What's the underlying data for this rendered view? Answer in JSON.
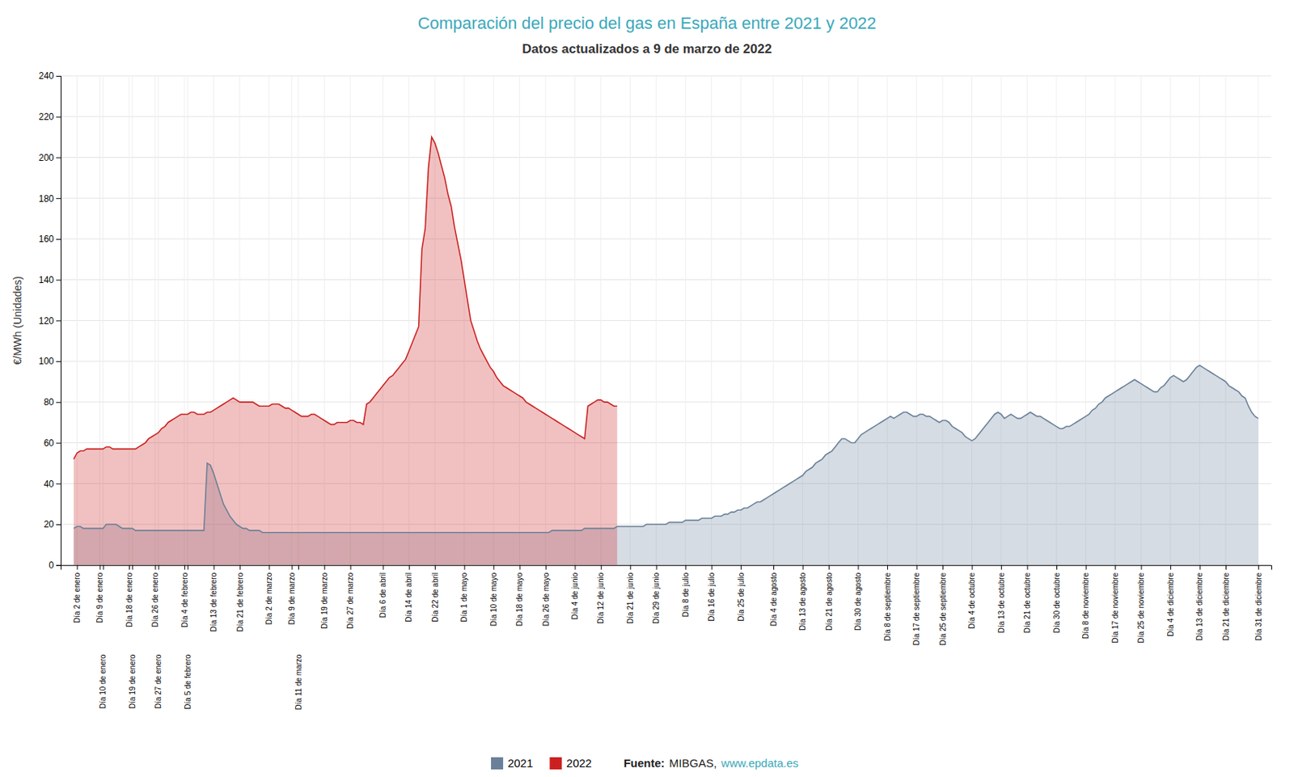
{
  "chart_data": {
    "type": "area",
    "title": "Comparación del precio del gas en España entre 2021 y 2022",
    "subtitle": "Datos actualizados a 9 de marzo de 2022",
    "y_label": "€/MWh (Unidades)",
    "annotations": [
      "Fuente:",
      "MIBGAS,",
      "www.epdata.es"
    ],
    "grid": true,
    "legend": "bottom",
    "ylim": [
      0,
      240
    ],
    "yticks": [
      0,
      20,
      40,
      60,
      80,
      100,
      120,
      140,
      160,
      180,
      200,
      220,
      240
    ],
    "categories": [
      null,
      "Día 2 de enero",
      null,
      null,
      null,
      null,
      null,
      null,
      "Día 9 de enero",
      "Día 10 de enero",
      null,
      null,
      null,
      null,
      null,
      null,
      null,
      "Día 18 de enero",
      "Día 19 de enero",
      null,
      null,
      null,
      null,
      null,
      null,
      "Día 26 de enero",
      "Día 27 de enero",
      null,
      null,
      null,
      null,
      null,
      null,
      null,
      "Día 4 de febrero",
      "Día 5 de febrero",
      null,
      null,
      null,
      null,
      null,
      null,
      null,
      "Día 13 de febrero",
      null,
      null,
      null,
      null,
      null,
      null,
      null,
      "Día 21 de febrero",
      null,
      null,
      null,
      null,
      null,
      null,
      null,
      null,
      "Día 2 de marzo",
      null,
      null,
      null,
      null,
      null,
      null,
      "Día 9 de marzo",
      null,
      "Día 11 de marzo",
      null,
      null,
      null,
      null,
      null,
      null,
      null,
      "Día 19 de marzo",
      null,
      null,
      null,
      null,
      null,
      null,
      null,
      "Día 27 de marzo",
      null,
      null,
      null,
      null,
      null,
      null,
      null,
      null,
      null,
      "Día 6 de abril",
      null,
      null,
      null,
      null,
      null,
      null,
      null,
      "Día 14 de abril",
      null,
      null,
      null,
      null,
      null,
      null,
      null,
      "Día 22 de abril",
      null,
      null,
      null,
      null,
      null,
      null,
      null,
      null,
      "Día 1 de mayo",
      null,
      null,
      null,
      null,
      null,
      null,
      null,
      null,
      "Día 10 de mayo",
      null,
      null,
      null,
      null,
      null,
      null,
      null,
      "Día 18 de mayo",
      null,
      null,
      null,
      null,
      null,
      null,
      null,
      "Día 26 de mayo",
      null,
      null,
      null,
      null,
      null,
      null,
      null,
      null,
      "Día 4 de junio",
      null,
      null,
      null,
      null,
      null,
      null,
      null,
      "Día 12 de junio",
      null,
      null,
      null,
      null,
      null,
      null,
      null,
      null,
      "Día 21 de junio",
      null,
      null,
      null,
      null,
      null,
      null,
      null,
      "Día 29 de junio",
      null,
      null,
      null,
      null,
      null,
      null,
      null,
      null,
      "Día 8 de julio",
      null,
      null,
      null,
      null,
      null,
      null,
      null,
      "Día 16 de julio",
      null,
      null,
      null,
      null,
      null,
      null,
      null,
      null,
      "Día 25 de julio",
      null,
      null,
      null,
      null,
      null,
      null,
      null,
      null,
      null,
      "Día 4 de agosto",
      null,
      null,
      null,
      null,
      null,
      null,
      null,
      null,
      "Día 13 de agosto",
      null,
      null,
      null,
      null,
      null,
      null,
      null,
      "Día 21 de agosto",
      null,
      null,
      null,
      null,
      null,
      null,
      null,
      null,
      "Día 30 de agosto",
      null,
      null,
      null,
      null,
      null,
      null,
      null,
      null,
      "Día 8 de septiembre",
      null,
      null,
      null,
      null,
      null,
      null,
      null,
      null,
      "Día 17 de septiembre",
      null,
      null,
      null,
      null,
      null,
      null,
      null,
      "Día 25 de septiembre",
      null,
      null,
      null,
      null,
      null,
      null,
      null,
      null,
      "Día 4 de octubre",
      null,
      null,
      null,
      null,
      null,
      null,
      null,
      null,
      "Día 13 de octubre",
      null,
      null,
      null,
      null,
      null,
      null,
      null,
      "Día 21 de octubre",
      null,
      null,
      null,
      null,
      null,
      null,
      null,
      null,
      "Día 30 de octubre",
      null,
      null,
      null,
      null,
      null,
      null,
      null,
      null,
      "Día 8 de noviembre",
      null,
      null,
      null,
      null,
      null,
      null,
      null,
      null,
      "Día 17 de noviembre",
      null,
      null,
      null,
      null,
      null,
      null,
      null,
      "Día 25 de noviembre",
      null,
      null,
      null,
      null,
      null,
      null,
      null,
      null,
      "Día 4 de diciembre",
      null,
      null,
      null,
      null,
      null,
      null,
      null,
      null,
      "Día 13 de diciembre",
      null,
      null,
      null,
      null,
      null,
      null,
      null,
      "Día 21 de diciembre",
      null,
      null,
      null,
      null,
      null,
      null,
      null,
      null,
      null,
      "Día 31 de diciembre"
    ],
    "series": [
      {
        "name": "2021",
        "color": "#6a8099",
        "values": [
          18,
          19,
          19,
          18,
          18,
          18,
          18,
          18,
          18,
          18,
          20,
          20,
          20,
          20,
          19,
          18,
          18,
          18,
          18,
          17,
          17,
          17,
          17,
          17,
          17,
          17,
          17,
          17,
          17,
          17,
          17,
          17,
          17,
          17,
          17,
          17,
          17,
          17,
          17,
          17,
          17,
          50,
          49,
          45,
          40,
          35,
          30,
          27,
          24,
          22,
          20,
          19,
          18,
          18,
          17,
          17,
          17,
          17,
          16,
          16,
          16,
          16,
          16,
          16,
          16,
          16,
          16,
          16,
          16,
          16,
          16,
          16,
          16,
          16,
          16,
          16,
          16,
          16,
          16,
          16,
          16,
          16,
          16,
          16,
          16,
          16,
          16,
          16,
          16,
          16,
          16,
          16,
          16,
          16,
          16,
          16,
          16,
          16,
          16,
          16,
          16,
          16,
          16,
          16,
          16,
          16,
          16,
          16,
          16,
          16,
          16,
          16,
          16,
          16,
          16,
          16,
          16,
          16,
          16,
          16,
          16,
          16,
          16,
          16,
          16,
          16,
          16,
          16,
          16,
          16,
          16,
          16,
          16,
          16,
          16,
          16,
          16,
          16,
          16,
          16,
          16,
          16,
          16,
          16,
          16,
          16,
          16,
          17,
          17,
          17,
          17,
          17,
          17,
          17,
          17,
          17,
          17,
          18,
          18,
          18,
          18,
          18,
          18,
          18,
          18,
          18,
          18,
          19,
          19,
          19,
          19,
          19,
          19,
          19,
          19,
          19,
          20,
          20,
          20,
          20,
          20,
          20,
          20,
          21,
          21,
          21,
          21,
          21,
          22,
          22,
          22,
          22,
          22,
          23,
          23,
          23,
          23,
          24,
          24,
          24,
          25,
          25,
          26,
          26,
          27,
          27,
          28,
          28,
          29,
          30,
          31,
          31,
          32,
          33,
          34,
          35,
          36,
          37,
          38,
          39,
          40,
          41,
          42,
          43,
          44,
          46,
          47,
          48,
          50,
          51,
          52,
          54,
          55,
          56,
          58,
          60,
          62,
          62,
          61,
          60,
          60,
          62,
          64,
          65,
          66,
          67,
          68,
          69,
          70,
          71,
          72,
          73,
          72,
          73,
          74,
          75,
          75,
          74,
          73,
          73,
          74,
          74,
          73,
          73,
          72,
          71,
          70,
          71,
          71,
          70,
          68,
          67,
          66,
          65,
          63,
          62,
          61,
          62,
          64,
          66,
          68,
          70,
          72,
          74,
          75,
          74,
          72,
          73,
          74,
          73,
          72,
          72,
          73,
          74,
          75,
          74,
          73,
          73,
          72,
          71,
          70,
          69,
          68,
          67,
          67,
          68,
          68,
          69,
          70,
          71,
          72,
          73,
          74,
          76,
          77,
          79,
          80,
          82,
          83,
          84,
          85,
          86,
          87,
          88,
          89,
          90,
          91,
          90,
          89,
          88,
          87,
          86,
          85,
          85,
          87,
          88,
          90,
          92,
          93,
          92,
          91,
          90,
          91,
          93,
          95,
          97,
          98,
          97,
          96,
          95,
          94,
          93,
          92,
          91,
          90,
          88,
          87,
          86,
          85,
          83,
          82,
          78,
          75,
          73,
          72
        ]
      },
      {
        "name": "2022",
        "color": "#cc2020",
        "values": [
          52,
          55,
          56,
          56,
          57,
          57,
          57,
          57,
          57,
          57,
          58,
          58,
          57,
          57,
          57,
          57,
          57,
          57,
          57,
          57,
          58,
          59,
          60,
          62,
          63,
          64,
          65,
          67,
          68,
          70,
          71,
          72,
          73,
          74,
          74,
          74,
          75,
          75,
          74,
          74,
          74,
          75,
          75,
          76,
          77,
          78,
          79,
          80,
          81,
          82,
          81,
          80,
          80,
          80,
          80,
          80,
          79,
          78,
          78,
          78,
          78,
          79,
          79,
          79,
          78,
          77,
          77,
          76,
          75,
          74,
          73,
          73,
          73,
          74,
          74,
          73,
          72,
          71,
          70,
          69,
          69,
          70,
          70,
          70,
          70,
          71,
          71,
          70,
          70,
          69,
          79,
          80,
          82,
          84,
          86,
          88,
          90,
          92,
          93,
          95,
          97,
          99,
          101,
          105,
          109,
          113,
          117,
          155,
          165,
          195,
          210,
          207,
          202,
          196,
          190,
          182,
          176,
          166,
          158,
          150,
          140,
          130,
          120,
          115,
          110,
          106,
          103,
          100,
          97,
          95,
          92,
          90,
          88,
          87,
          86,
          85,
          84,
          83,
          82,
          80,
          79,
          78,
          77,
          76,
          75,
          74,
          73,
          72,
          71,
          70,
          69,
          68,
          67,
          66,
          65,
          64,
          63,
          62,
          78,
          79,
          80,
          81,
          81,
          80,
          80,
          79,
          78,
          78,
          null,
          null,
          null,
          null,
          null,
          null,
          null,
          null,
          null,
          null,
          null,
          null,
          null,
          null,
          null,
          null,
          null,
          null,
          null,
          null,
          null,
          null,
          null,
          null,
          null,
          null,
          null,
          null,
          null,
          null,
          null,
          null,
          null,
          null,
          null,
          null,
          null,
          null,
          null,
          null,
          null,
          null,
          null,
          null,
          null,
          null,
          null,
          null,
          null,
          null,
          null,
          null,
          null,
          null,
          null,
          null,
          null,
          null,
          null,
          null,
          null,
          null,
          null,
          null,
          null,
          null,
          null,
          null,
          null,
          null,
          null,
          null,
          null,
          null,
          null,
          null,
          null,
          null,
          null,
          null,
          null,
          null,
          null,
          null,
          null,
          null,
          null,
          null,
          null,
          null,
          null,
          null,
          null,
          null,
          null,
          null,
          null,
          null,
          null,
          null,
          null,
          null,
          null,
          null,
          null,
          null,
          null,
          null,
          null,
          null,
          null,
          null,
          null,
          null,
          null,
          null,
          null,
          null,
          null,
          null,
          null,
          null,
          null,
          null,
          null,
          null,
          null,
          null,
          null,
          null,
          null,
          null,
          null,
          null,
          null,
          null,
          null,
          null,
          null,
          null,
          null,
          null,
          null,
          null,
          null,
          null,
          null,
          null,
          null,
          null,
          null,
          null,
          null,
          null,
          null,
          null,
          null,
          null,
          null,
          null,
          null,
          null,
          null,
          null,
          null,
          null,
          null,
          null,
          null,
          null,
          null,
          null,
          null,
          null,
          null,
          null,
          null,
          null,
          null,
          null,
          null,
          null,
          null,
          null,
          null,
          null,
          null,
          null,
          null,
          null,
          null,
          null,
          null,
          null,
          null,
          null,
          null
        ]
      }
    ]
  }
}
